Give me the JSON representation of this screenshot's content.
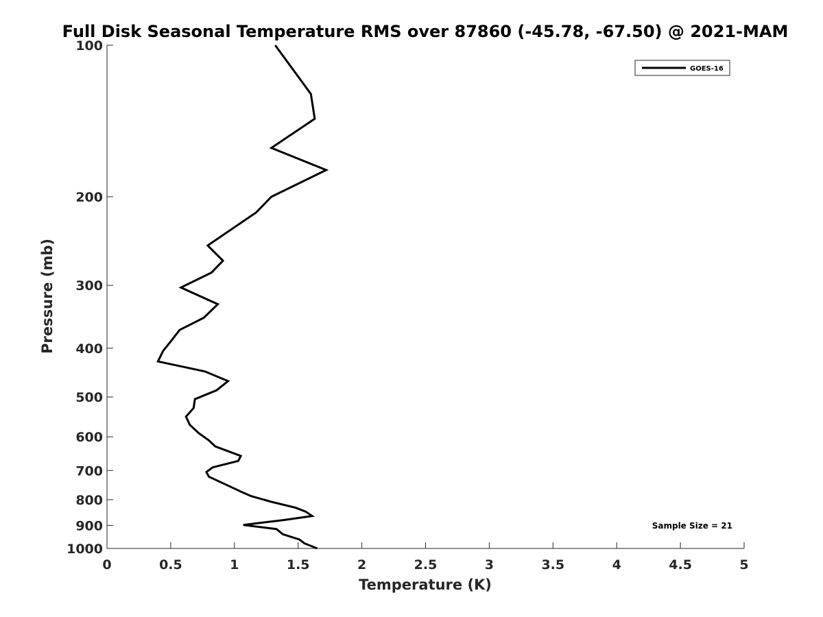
{
  "chart_data": {
    "type": "line",
    "title": "Full Disk Seasonal Temperature RMS over 87860 (-45.78, -67.50) @ 2021-MAM",
    "xlabel": "Temperature (K)",
    "ylabel": "Pressure (mb)",
    "xlim": [
      0,
      5
    ],
    "ylim": [
      100,
      1000
    ],
    "yscale": "log",
    "y_reversed": true,
    "grid": false,
    "xticks": [
      0,
      0.5,
      1,
      1.5,
      2,
      2.5,
      3,
      3.5,
      4,
      4.5,
      5
    ],
    "xtick_labels": [
      "0",
      "0.5",
      "1",
      "1.5",
      "2",
      "2.5",
      "3",
      "3.5",
      "4",
      "4.5",
      "5"
    ],
    "yticks": [
      100,
      200,
      300,
      400,
      500,
      600,
      700,
      800,
      900,
      1000
    ],
    "ytick_labels": [
      "100",
      "200",
      "300",
      "400",
      "500",
      "600",
      "700",
      "800",
      "900",
      "1000"
    ],
    "legend": {
      "position": "top-right",
      "entries": [
        "GOES-16"
      ]
    },
    "annotation": "Sample Size = 21",
    "line_color": "#000000",
    "series": [
      {
        "name": "GOES-16",
        "x": [
          1.32,
          1.6,
          1.63,
          1.29,
          1.72,
          1.29,
          1.17,
          0.79,
          0.91,
          0.82,
          0.58,
          0.87,
          0.76,
          0.57,
          0.51,
          0.44,
          0.4,
          0.77,
          0.95,
          0.86,
          0.69,
          0.68,
          0.62,
          0.65,
          0.72,
          0.8,
          0.85,
          1.05,
          1.03,
          0.83,
          0.78,
          0.8,
          0.95,
          1.06,
          1.13,
          1.29,
          1.48,
          1.56,
          1.61,
          1.39,
          1.07,
          1.33,
          1.38,
          1.51,
          1.55,
          1.65
        ],
        "y": [
          100,
          125,
          140,
          160,
          177,
          200,
          215,
          250,
          268,
          283,
          303,
          327,
          348,
          368,
          385,
          405,
          425,
          445,
          465,
          485,
          505,
          526,
          547,
          568,
          590,
          610,
          627,
          655,
          670,
          690,
          705,
          720,
          750,
          773,
          787,
          808,
          830,
          845,
          862,
          878,
          898,
          915,
          937,
          960,
          977,
          1000
        ]
      }
    ]
  }
}
